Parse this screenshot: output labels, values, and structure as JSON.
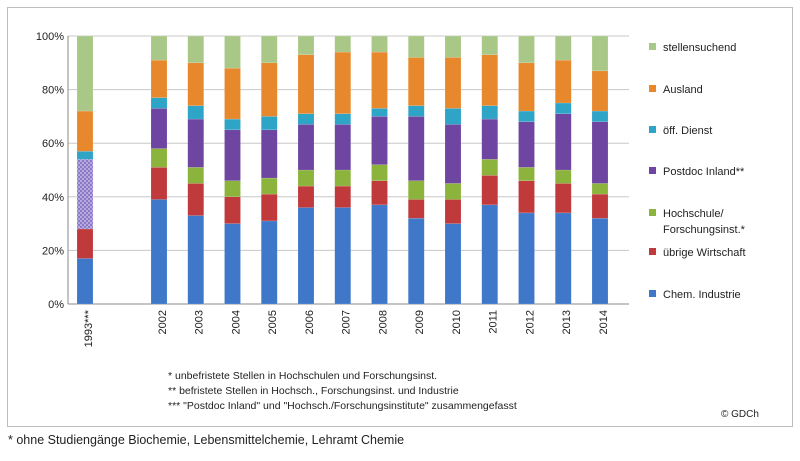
{
  "chart_data": {
    "type": "bar",
    "stacked": true,
    "percent": true,
    "categories": [
      "1993***",
      "2002",
      "2003",
      "2004",
      "2005",
      "2006",
      "2007",
      "2008",
      "2009",
      "2010",
      "2011",
      "2012",
      "2013",
      "2014"
    ],
    "yticks": [
      "0%",
      "20%",
      "40%",
      "60%",
      "80%",
      "100%"
    ],
    "ylim": [
      0,
      100
    ],
    "legend_position": "right",
    "grid": true,
    "series": [
      {
        "name": "Chem. Industrie",
        "color": "#3f78c8",
        "values": [
          17,
          39,
          33,
          30,
          31,
          36,
          36,
          37,
          32,
          30,
          37,
          34,
          34,
          32
        ]
      },
      {
        "name": "übrige Wirtschaft",
        "color": "#c0393b",
        "values": [
          11,
          12,
          12,
          10,
          10,
          8,
          8,
          9,
          7,
          9,
          11,
          12,
          11,
          9
        ]
      },
      {
        "name": "Hochschule/\nForschungsinst.*",
        "color": "#8cb43c",
        "values": [
          26,
          7,
          6,
          6,
          6,
          6,
          6,
          6,
          7,
          6,
          6,
          5,
          5,
          4
        ]
      },
      {
        "name": "Postdoc Inland**",
        "color": "#6e45a0",
        "values": [
          0,
          15,
          18,
          19,
          18,
          17,
          17,
          18,
          24,
          22,
          15,
          17,
          21,
          23
        ]
      },
      {
        "name": "öff. Dienst",
        "color": "#2ea4c6",
        "values": [
          3,
          4,
          5,
          4,
          5,
          4,
          4,
          3,
          4,
          6,
          5,
          4,
          4,
          4
        ]
      },
      {
        "name": "Ausland",
        "color": "#e8882d",
        "values": [
          15,
          14,
          16,
          19,
          20,
          22,
          23,
          21,
          18,
          19,
          19,
          18,
          16,
          15
        ]
      },
      {
        "name": "stellensuchend",
        "color": "#a9c888",
        "values": [
          28,
          9,
          10,
          12,
          10,
          7,
          6,
          6,
          8,
          8,
          7,
          10,
          9,
          13
        ]
      }
    ],
    "combined_note_color": "#8b7dc8"
  },
  "footnotes": {
    "f1": "*  unbefristete Stellen in  Hochschulen und Forschungsinst.",
    "f2": "**  befristete Stellen in Hochsch., Forschungsinst. und Industrie",
    "f3": "*** \"Postdoc Inland\"  und  \"Hochsch./Forschungsinstitute\" zusammengefasst"
  },
  "copyright": "© GDCh",
  "bottom_note": "* ohne Studiengänge Biochemie, Lebensmittelchemie, Lehramt Chemie"
}
